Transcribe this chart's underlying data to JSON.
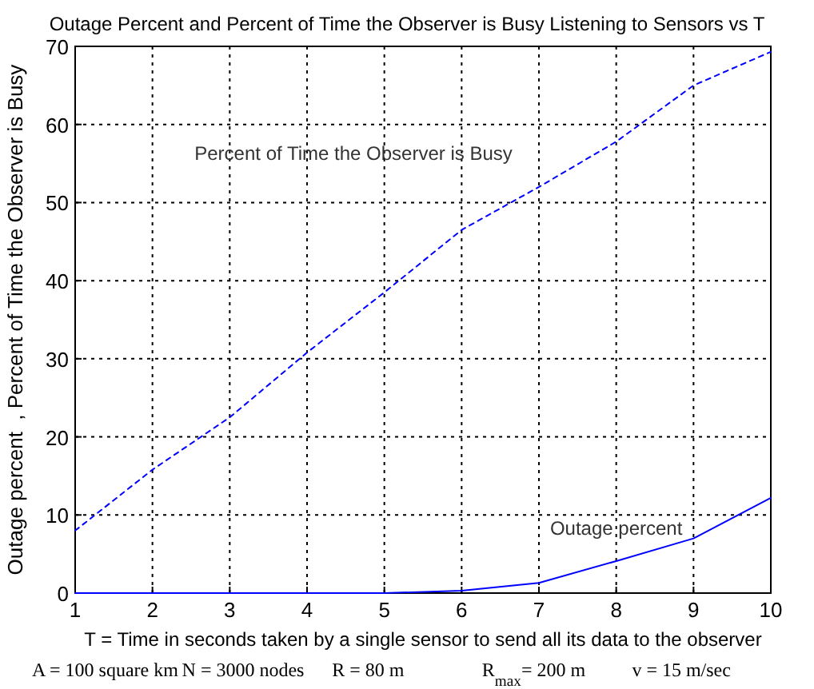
{
  "chart_data": {
    "type": "line",
    "title": "Outage Percent and Percent of Time the Observer is Busy Listening to Sensors vs T",
    "xlabel": "T = Time in seconds taken by a single sensor to send all its data to the observer",
    "ylabel": "Outage percent  , Percent of Time the Observer is Busy",
    "x": [
      1,
      2,
      3,
      4,
      5,
      6,
      7,
      8,
      9,
      10
    ],
    "series": [
      {
        "name": "Percent of Time the Observer is Busy",
        "color": "#0000ff",
        "line_style": "dashed",
        "values": [
          8,
          15.8,
          22.5,
          30.8,
          38.5,
          46.5,
          52,
          57.8,
          65,
          69.3
        ]
      },
      {
        "name": "Outage percent",
        "color": "#0000ff",
        "line_style": "solid",
        "values": [
          0,
          0,
          0,
          0,
          0,
          0.3,
          1.3,
          4.1,
          7,
          12.2
        ]
      }
    ],
    "xlim": [
      1,
      10
    ],
    "xticks": [
      1,
      2,
      3,
      4,
      5,
      6,
      7,
      8,
      9,
      10
    ],
    "ylim": [
      0,
      70
    ],
    "yticks": [
      0,
      10,
      20,
      30,
      40,
      50,
      60,
      70
    ],
    "grid": true,
    "marker": "none",
    "annotations": [
      "A = 100 square km",
      "N = 3000 nodes",
      "R = 80 m",
      "R$_{max}$= 200 m",
      "v = 15 m/sec"
    ]
  }
}
